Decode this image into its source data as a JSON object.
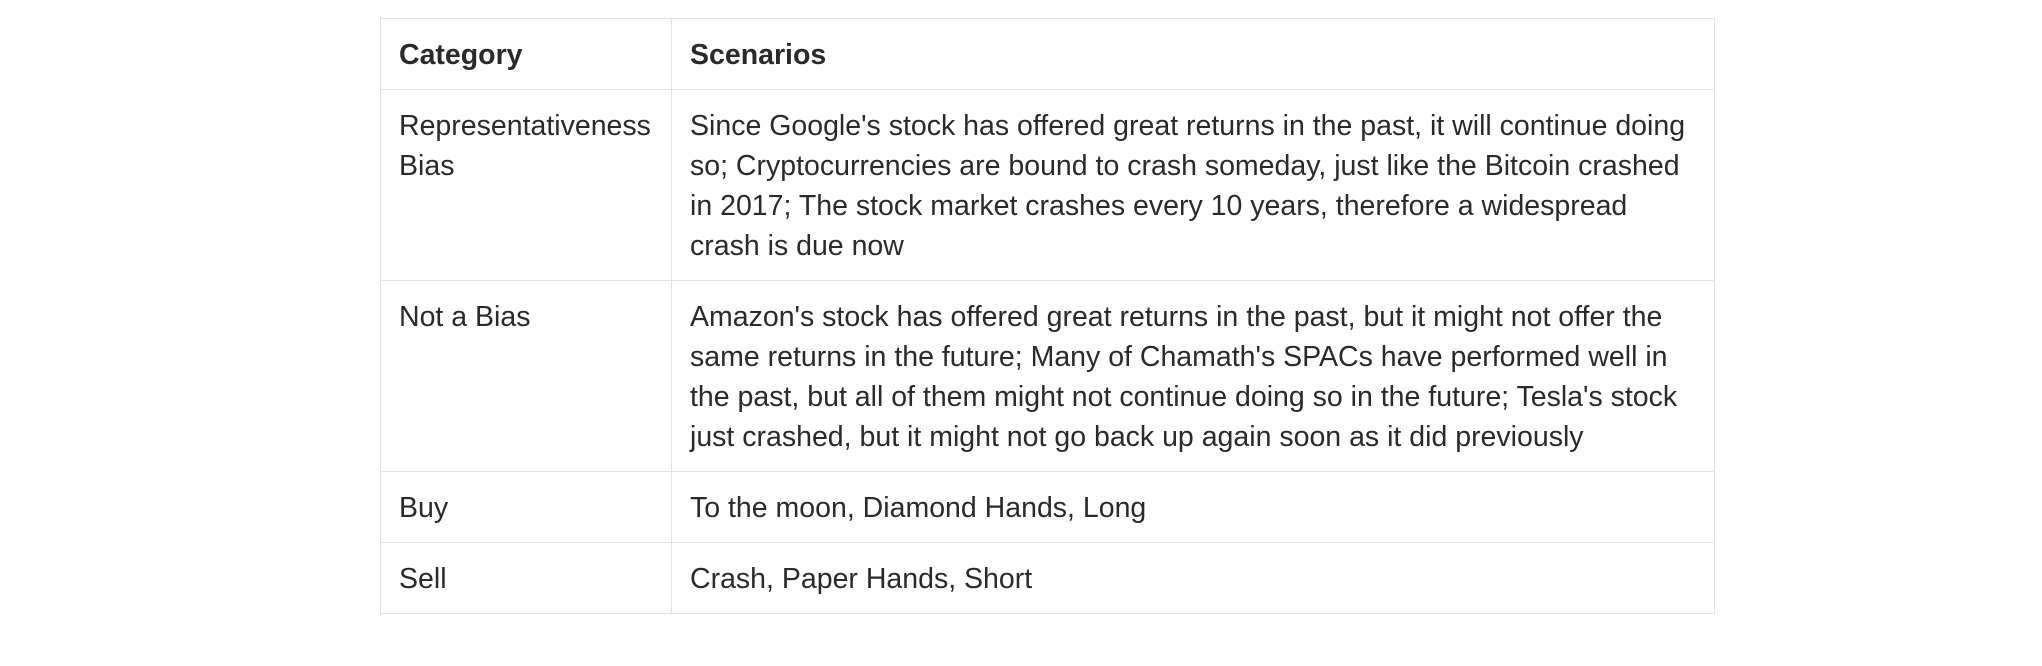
{
  "table": {
    "headers": {
      "category": "Category",
      "scenarios": "Scenarios"
    },
    "rows": [
      {
        "category": "Representativeness Bias",
        "scenarios": "Since Google's stock has offered great returns in the past, it will continue doing so; Cryptocurrencies are bound to crash someday, just like the Bitcoin crashed in 2017; The stock market crashes every 10 years, therefore a widespread crash is due now"
      },
      {
        "category": "Not a Bias",
        "scenarios": "Amazon's stock has offered great returns in the past, but it might not offer the same returns in the future; Many of Chamath's SPACs have performed well in the past, but all of them might not continue doing so in the future; Tesla's stock just crashed, but it might not go back up again soon as it did previously"
      },
      {
        "category": "Buy",
        "scenarios": "To the moon, Diamond Hands, Long"
      },
      {
        "category": "Sell",
        "scenarios": "Crash, Paper Hands, Short"
      }
    ]
  }
}
